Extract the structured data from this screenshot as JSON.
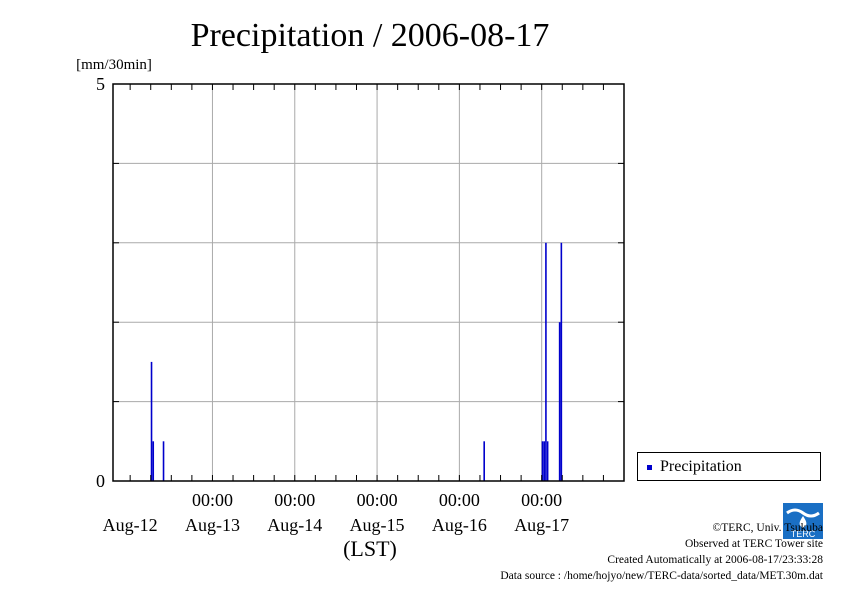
{
  "chart_data": {
    "type": "bar",
    "title": "Precipitation / 2006-08-17",
    "unit_label": "[mm/30min]",
    "xlabel": "(LST)",
    "ylim": [
      0,
      5
    ],
    "y_ticks": [
      "0",
      "5"
    ],
    "x_range": [
      "2006-08-11 19:00",
      "2006-08-17 24:00"
    ],
    "x_time_ticks": [
      "00:00",
      "00:00",
      "00:00",
      "00:00",
      "00:00"
    ],
    "x_date_labels": [
      "Aug-12",
      "Aug-13",
      "Aug-14",
      "Aug-15",
      "Aug-16",
      "Aug-17"
    ],
    "grid": true,
    "legend_position": "bottom-right",
    "series": [
      {
        "name": "Precipitation",
        "color": "#0000cc",
        "points": [
          {
            "t": "2006-08-12 06:30",
            "v": 1.5
          },
          {
            "t": "2006-08-12 07:00",
            "v": 0.5
          },
          {
            "t": "2006-08-12 10:00",
            "v": 0.5
          },
          {
            "t": "2006-08-16 07:30",
            "v": 0.5
          },
          {
            "t": "2006-08-17 00:30",
            "v": 0.5
          },
          {
            "t": "2006-08-17 01:00",
            "v": 0.5
          },
          {
            "t": "2006-08-17 01:30",
            "v": 3.0
          },
          {
            "t": "2006-08-17 02:00",
            "v": 0.5
          },
          {
            "t": "2006-08-17 05:30",
            "v": 2.0
          },
          {
            "t": "2006-08-17 06:00",
            "v": 3.0
          }
        ]
      }
    ]
  },
  "legend": {
    "label": "Precipitation"
  },
  "credits": {
    "line1": "©TERC, Univ. Tsukuba",
    "line2": "Observed at TERC Tower site",
    "line3": "Created Automatically at 2006-08-17/23:33:28",
    "line4": "Data source : /home/hojyo/new/TERC-data/sorted_data/MET.30m.dat"
  },
  "logo": {
    "text": "TERC",
    "icon": "terc-logo-icon"
  }
}
